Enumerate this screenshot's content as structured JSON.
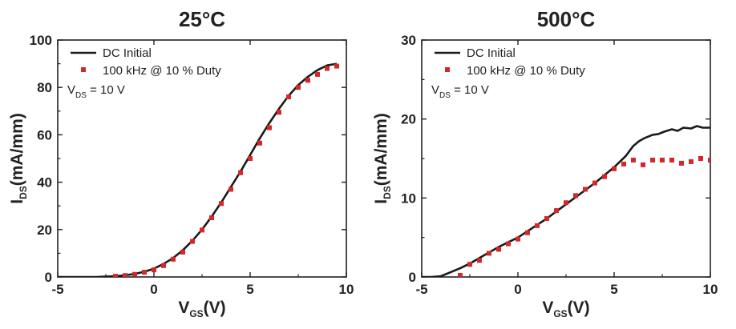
{
  "chart_data": [
    {
      "type": "line",
      "title": "25°C",
      "xlabel": {
        "main": "V",
        "sub": "GS",
        "unit": "(V)"
      },
      "ylabel": {
        "main": "I",
        "sub": "DS",
        "unit": "(mA/mm)"
      },
      "xlim": [
        -5,
        10
      ],
      "ylim": [
        0,
        100
      ],
      "xticks": [
        "-5",
        "0",
        "5",
        "10"
      ],
      "yticks": [
        "0",
        "20",
        "40",
        "60",
        "80",
        "100"
      ],
      "legend_position": "top-left",
      "annotation": {
        "main": "V",
        "sub": "DS",
        "rest": " = 10 V"
      },
      "series": [
        {
          "name": "DC Initial",
          "style": "line",
          "color": "#1a1a1a",
          "x": [
            -5,
            -3,
            -2,
            -1.5,
            -1,
            -0.5,
            0,
            0.5,
            1,
            1.5,
            2,
            2.5,
            3,
            3.5,
            4,
            4.5,
            5,
            5.5,
            6,
            6.5,
            7,
            7.5,
            8,
            8.5,
            9,
            9.5
          ],
          "y": [
            0,
            0,
            0.3,
            0.7,
            1.3,
            2.2,
            3.5,
            5.5,
            8,
            11.3,
            15.3,
            20,
            25.5,
            31.5,
            38,
            44.5,
            51.5,
            58.5,
            65,
            71,
            76.5,
            81,
            84.5,
            87.3,
            89.3,
            90
          ]
        },
        {
          "name": "100 kHz @ 10 % Duty",
          "style": "markers",
          "color": "#d62728",
          "x": [
            -2,
            -1.5,
            -1,
            -0.5,
            0,
            0.5,
            1,
            1.5,
            2,
            2.5,
            3,
            3.5,
            4,
            4.5,
            5,
            5.5,
            6,
            6.5,
            7,
            7.5,
            8,
            8.5,
            9,
            9.5
          ],
          "y": [
            0.3,
            0.6,
            1.1,
            2,
            3,
            4.8,
            7.5,
            10.5,
            15,
            19.8,
            25,
            31,
            37,
            44,
            50,
            56.5,
            63,
            69.5,
            76,
            80,
            83,
            85.5,
            88,
            89
          ]
        }
      ]
    },
    {
      "type": "line",
      "title": "500°C",
      "xlabel": {
        "main": "V",
        "sub": "GS",
        "unit": "(V)"
      },
      "ylabel": {
        "main": "I",
        "sub": "DS",
        "unit": "(mA/mm)"
      },
      "xlim": [
        -5,
        10
      ],
      "ylim": [
        0,
        30
      ],
      "xticks": [
        "-5",
        "0",
        "5",
        "10"
      ],
      "yticks": [
        "0",
        "10",
        "20",
        "30"
      ],
      "legend_position": "top-left",
      "annotation": {
        "main": "V",
        "sub": "DS",
        "rest": " = 10 V"
      },
      "series": [
        {
          "name": "DC Initial",
          "style": "line",
          "color": "#1a1a1a",
          "x": [
            -5,
            -4.5,
            -4,
            -3.5,
            -3,
            -2.5,
            -2,
            -1.5,
            -1,
            -0.5,
            0,
            0.5,
            1,
            1.5,
            2,
            2.5,
            3,
            3.5,
            4,
            4.5,
            5,
            5.3,
            5.6,
            6,
            6.3,
            6.6,
            7,
            7.3,
            7.6,
            8,
            8.3,
            8.6,
            9,
            9.3,
            9.6,
            10
          ],
          "y": [
            0,
            0,
            0.1,
            0.6,
            1.1,
            1.7,
            2.4,
            3.1,
            3.8,
            4.4,
            5,
            5.8,
            6.6,
            7.4,
            8.3,
            9.2,
            10.1,
            11,
            11.9,
            12.9,
            13.9,
            14.6,
            15.3,
            16.6,
            17.2,
            17.6,
            18,
            18.1,
            18.4,
            18.7,
            18.5,
            18.9,
            18.8,
            19.1,
            18.9,
            18.9
          ]
        },
        {
          "name": "100 kHz @ 10 % Duty",
          "style": "markers",
          "color": "#d62728",
          "x": [
            -3,
            -2.5,
            -2,
            -1.5,
            -1,
            -0.5,
            0,
            0.5,
            1,
            1.5,
            2,
            2.5,
            3,
            3.5,
            4,
            4.5,
            5,
            5.5,
            6,
            6.5,
            7,
            7.5,
            8,
            8.5,
            9,
            9.5,
            10
          ],
          "y": [
            0.2,
            1.6,
            2.1,
            3.0,
            3.5,
            4.2,
            4.8,
            5.6,
            6.5,
            7.4,
            8.4,
            9.4,
            10.3,
            11.1,
            11.9,
            12.7,
            13.7,
            14.3,
            14.8,
            14.2,
            14.8,
            14.8,
            14.8,
            14.4,
            14.6,
            15.0,
            14.8
          ]
        }
      ]
    }
  ]
}
